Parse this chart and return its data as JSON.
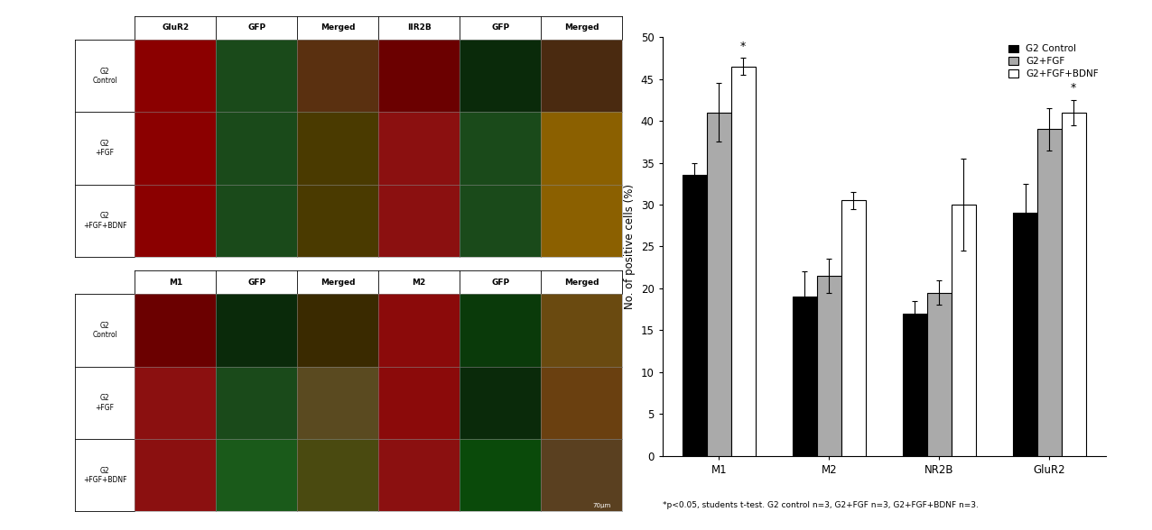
{
  "categories": [
    "M1",
    "M2",
    "NR2B",
    "GluR2"
  ],
  "series_names": [
    "G2 Control",
    "G2+FGF",
    "G2+FGF+BDNF"
  ],
  "series_values": {
    "G2 Control": [
      33.5,
      19.0,
      17.0,
      29.0
    ],
    "G2+FGF": [
      41.0,
      21.5,
      19.5,
      39.0
    ],
    "G2+FGF+BDNF": [
      46.5,
      30.5,
      30.0,
      41.0
    ]
  },
  "series_errors": {
    "G2 Control": [
      1.5,
      3.0,
      1.5,
      3.5
    ],
    "G2+FGF": [
      3.5,
      2.0,
      1.5,
      2.5
    ],
    "G2+FGF+BDNF": [
      1.0,
      1.0,
      5.5,
      1.5
    ]
  },
  "colors": {
    "G2 Control": "#000000",
    "G2+FGF": "#aaaaaa",
    "G2+FGF+BDNF": "#ffffff"
  },
  "bar_edge_color": "#000000",
  "ylabel": "No. of positive cells (%)",
  "ylim": [
    0,
    50
  ],
  "yticks": [
    0,
    5,
    10,
    15,
    20,
    25,
    30,
    35,
    40,
    45,
    50
  ],
  "footnote": "*p<0.05, students t-test. G2 control n=3, G2+FGF n=3, G2+FGF+BDNF n=3.",
  "bar_width": 0.22,
  "sig_cat_indices": [
    0,
    3
  ],
  "sig_series": "G2+FGF+BDNF",
  "figure_bg": "#ffffff",
  "top_panel_col_labels": [
    "GluR2",
    "GFP",
    "Merged",
    "IIR2B",
    "GFP",
    "Merged"
  ],
  "top_panel_row_labels": [
    "G2\nControl",
    "G2\n+FGF",
    "G2\n+FGF+BDNF"
  ],
  "bottom_panel_col_labels": [
    "M1",
    "GFP",
    "Merged",
    "M2",
    "GFP",
    "Merged"
  ],
  "bottom_panel_row_labels": [
    "G2\nControl",
    "G2\n+FGF",
    "G2\n+FGF+BDNF"
  ],
  "top_panel_colors": [
    [
      "#8B0000",
      "#1A4A1A",
      "#5A3010",
      "#6B0000",
      "#0A2A0A",
      "#4A2A10"
    ],
    [
      "#8B0000",
      "#1A4A1A",
      "#4A3A00",
      "#8B1010",
      "#1A4A1A",
      "#8B6000"
    ],
    [
      "#8B0000",
      "#1A4A1A",
      "#4A3A00",
      "#8B1010",
      "#1A4A1A",
      "#8B6000"
    ]
  ],
  "bottom_panel_colors": [
    [
      "#6B0000",
      "#0A2A0A",
      "#3A2A00",
      "#8B0A0A",
      "#0A3A0A",
      "#6A4A10"
    ],
    [
      "#8B1010",
      "#1A4A1A",
      "#5A4A20",
      "#8B0A0A",
      "#0A2A0A",
      "#6A4010"
    ],
    [
      "#8B1010",
      "#1A5A1A",
      "#4A4A10",
      "#8B1010",
      "#0A4A0A",
      "#5A4020"
    ]
  ],
  "scale_bar_text": "70μm"
}
